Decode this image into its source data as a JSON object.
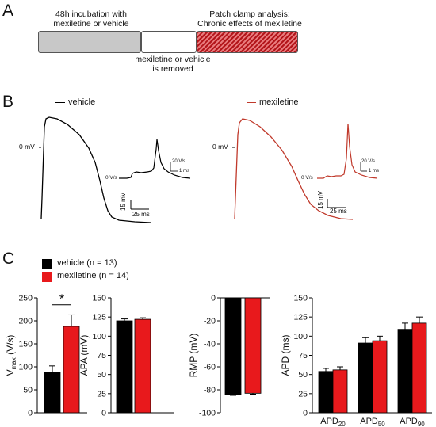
{
  "panels": {
    "a": "A",
    "b": "B",
    "c": "C"
  },
  "timeline": {
    "step1": "48h incubation with\nmexiletine or vehicle",
    "step2": "mexiletine or vehicle\nis removed",
    "step3": "Patch clamp analysis:\nChronic effects of mexiletine"
  },
  "traces": {
    "vehicle_label": "vehicle",
    "mexiletine_label": "mexiletine",
    "zero_mv": "0 mV",
    "zero_vs": "0 V/s",
    "scale_v": "15 mV",
    "scale_t": "25 ms",
    "inset_scale_v": "20 V/s",
    "inset_scale_t": "1 ms"
  },
  "legend": {
    "vehicle": "vehicle (n = 13)",
    "mexiletine": "mexiletine (n = 14)"
  },
  "colors": {
    "vehicle": "#000000",
    "mexiletine": "#e8191c",
    "hatch": "#b3151a",
    "grey": "#c8c8c8"
  },
  "chart_data": [
    {
      "type": "bar",
      "ylabel_main": "V",
      "ylabel_sub": "max",
      "ylabel_rest": " (V/s)",
      "ylim": [
        0,
        250
      ],
      "yticks": [
        0,
        50,
        100,
        150,
        200,
        250
      ],
      "series": [
        {
          "name": "vehicle (n = 13)",
          "values": [
            88
          ],
          "errors": [
            14
          ]
        },
        {
          "name": "mexiletine (n = 14)",
          "values": [
            188
          ],
          "errors": [
            25
          ]
        }
      ],
      "annotation": "*"
    },
    {
      "type": "bar",
      "ylabel": "APA (mV)",
      "ylim": [
        0,
        150
      ],
      "yticks": [
        0,
        25,
        50,
        75,
        100,
        125,
        150
      ],
      "series": [
        {
          "name": "vehicle (n = 13)",
          "values": [
            120
          ],
          "errors": [
            2.5
          ]
        },
        {
          "name": "mexiletine (n = 14)",
          "values": [
            122
          ],
          "errors": [
            2
          ]
        }
      ]
    },
    {
      "type": "bar",
      "ylabel": "RMP (mV)",
      "ylim": [
        -100,
        0
      ],
      "yticks": [
        0,
        -20,
        -40,
        -60,
        -80,
        -100
      ],
      "series": [
        {
          "name": "vehicle (n = 13)",
          "values": [
            -84
          ],
          "errors": [
            0.8
          ]
        },
        {
          "name": "mexiletine (n = 14)",
          "values": [
            -83
          ],
          "errors": [
            0.8
          ]
        }
      ]
    },
    {
      "type": "bar",
      "ylabel": "APD (ms)",
      "ylim": [
        0,
        150
      ],
      "yticks": [
        0,
        25,
        50,
        75,
        100,
        125,
        150
      ],
      "categories": [
        {
          "main": "APD",
          "sub": "20"
        },
        {
          "main": "APD",
          "sub": "50"
        },
        {
          "main": "APD",
          "sub": "90"
        }
      ],
      "series": [
        {
          "name": "vehicle (n = 13)",
          "values": [
            54,
            91,
            109
          ],
          "errors": [
            4,
            7,
            8
          ]
        },
        {
          "name": "mexiletine (n = 14)",
          "values": [
            56,
            94,
            117
          ],
          "errors": [
            4,
            6,
            8
          ]
        }
      ]
    }
  ]
}
